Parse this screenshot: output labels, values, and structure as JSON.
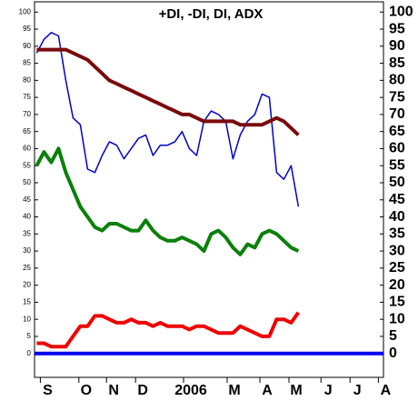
{
  "chart_data": {
    "type": "line",
    "title": "+DI, -DI, DI, ADX",
    "xlim": [
      -0.3,
      47.7
    ],
    "ylim": [
      -7,
      103
    ],
    "yticks": [
      0,
      5,
      10,
      15,
      20,
      25,
      30,
      35,
      40,
      45,
      50,
      55,
      60,
      65,
      70,
      75,
      80,
      85,
      90,
      95,
      100
    ],
    "xticks": [
      {
        "value": 1.5,
        "label": "S"
      },
      {
        "value": 6.8,
        "label": "O"
      },
      {
        "value": 10.6,
        "label": "N"
      },
      {
        "value": 14.6,
        "label": "D"
      },
      {
        "value": 21.2,
        "label": "2006"
      },
      {
        "value": 27.2,
        "label": "M"
      },
      {
        "value": 31.7,
        "label": "A"
      },
      {
        "value": 35.7,
        "label": "M"
      },
      {
        "value": 40.1,
        "label": "J"
      },
      {
        "value": 44.1,
        "label": "J"
      },
      {
        "value": 48.0,
        "label": "A"
      }
    ],
    "series": [
      {
        "color": "#0000cc",
        "values": [
          88,
          92,
          94,
          93,
          80,
          69,
          67,
          54,
          53,
          58,
          62,
          61,
          57,
          60,
          63,
          64,
          58,
          61,
          61,
          62,
          65,
          60,
          58,
          68,
          71,
          70,
          68,
          57,
          64,
          68,
          70,
          76,
          75,
          53,
          51,
          55,
          43
        ]
      },
      {
        "color": "#7a0a0a",
        "values": [
          89,
          89,
          89,
          89,
          89,
          88,
          87,
          86,
          84,
          82,
          80,
          79,
          78,
          77,
          76,
          75,
          74,
          73,
          72,
          71,
          70,
          70,
          69,
          68,
          68,
          68,
          68,
          68,
          67,
          67,
          67,
          67,
          68,
          69,
          68,
          66,
          64
        ]
      },
      {
        "color": "#0a800a",
        "values": [
          55,
          59,
          56,
          60,
          53,
          48,
          43,
          40,
          37,
          36,
          38,
          38,
          37,
          36,
          36,
          39,
          36,
          34,
          33,
          33,
          34,
          33,
          32,
          30,
          35,
          36,
          34,
          31,
          29,
          32,
          31,
          35,
          36,
          35,
          33,
          31,
          30
        ]
      },
      {
        "color": "#ee0000",
        "values": [
          3,
          3,
          2,
          2,
          2,
          5,
          8,
          8,
          11,
          11,
          10,
          9,
          9,
          10,
          9,
          9,
          8,
          9,
          8,
          8,
          8,
          7,
          8,
          8,
          7,
          6,
          6,
          6,
          8,
          7,
          6,
          5,
          5,
          10,
          10,
          9,
          12
        ]
      }
    ],
    "hlines": [
      {
        "value": 0,
        "color": "#0000ee"
      }
    ]
  }
}
